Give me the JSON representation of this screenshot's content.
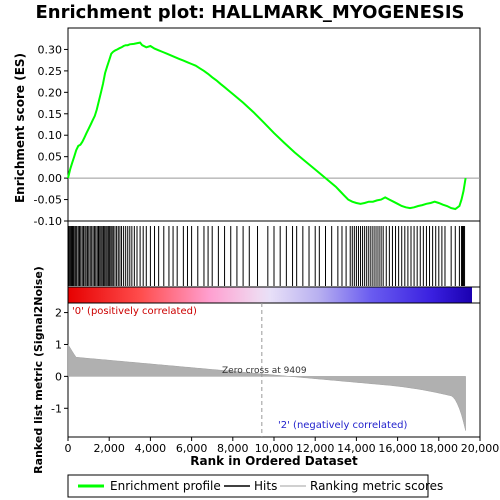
{
  "chart_data": {
    "type": "line",
    "title": "Enrichment plot: HALLMARK_MYOGENESIS",
    "xlabel": "Rank in Ordered Dataset",
    "ylabel_top": "Enrichment score (ES)",
    "ylabel_bottom": "Ranked list metric (Signal2Noise)",
    "x_ticks": [
      "0",
      "2,000",
      "4,000",
      "6,000",
      "8,000",
      "10,000",
      "12,000",
      "14,000",
      "16,000",
      "18,000",
      "20,000"
    ],
    "x_tick_values": [
      0,
      2000,
      4000,
      6000,
      8000,
      10000,
      12000,
      14000,
      16000,
      18000,
      20000
    ],
    "xlim": [
      0,
      20000
    ],
    "n_genes": 19300,
    "es_ylim": [
      -0.1,
      0.35
    ],
    "es_ticks": [
      "-0.10",
      "-0.05",
      "0.00",
      "0.05",
      "0.10",
      "0.15",
      "0.20",
      "0.25",
      "0.30"
    ],
    "es_tick_values": [
      -0.1,
      -0.05,
      0.0,
      0.05,
      0.1,
      0.15,
      0.2,
      0.25,
      0.3
    ],
    "metric_ylim": [
      -1.9,
      2.3
    ],
    "metric_ticks": [
      "2",
      "1",
      "0",
      "-1"
    ],
    "metric_tick_values": [
      2,
      1,
      0,
      -1
    ],
    "series": [
      {
        "name": "Enrichment profile",
        "color": "#00ff00",
        "x": [
          0,
          100,
          200,
          300,
          400,
          500,
          600,
          700,
          800,
          900,
          1000,
          1100,
          1200,
          1300,
          1400,
          1500,
          1600,
          1700,
          1800,
          1900,
          2000,
          2100,
          2200,
          2300,
          2400,
          2500,
          2600,
          2700,
          2800,
          2900,
          3000,
          3200,
          3400,
          3500,
          3600,
          3800,
          4000,
          4200,
          4400,
          4600,
          4800,
          5000,
          5200,
          5400,
          5600,
          5800,
          6000,
          6200,
          6400,
          6600,
          6800,
          7000,
          7200,
          7400,
          7600,
          7800,
          8000,
          8500,
          9000,
          9500,
          10000,
          10500,
          11000,
          11500,
          12000,
          12500,
          13000,
          13200,
          13400,
          13600,
          13800,
          14000,
          14200,
          14400,
          14600,
          14800,
          15000,
          15200,
          15400,
          15600,
          15800,
          16000,
          16200,
          16400,
          16600,
          16800,
          17000,
          17200,
          17400,
          17600,
          17800,
          18000,
          18200,
          18400,
          18600,
          18800,
          19000,
          19100,
          19200,
          19300
        ],
        "y": [
          0.0,
          0.02,
          0.035,
          0.05,
          0.065,
          0.075,
          0.078,
          0.085,
          0.095,
          0.105,
          0.115,
          0.125,
          0.135,
          0.145,
          0.16,
          0.18,
          0.2,
          0.22,
          0.245,
          0.26,
          0.275,
          0.29,
          0.295,
          0.298,
          0.3,
          0.303,
          0.305,
          0.308,
          0.31,
          0.31,
          0.312,
          0.313,
          0.315,
          0.316,
          0.31,
          0.305,
          0.308,
          0.302,
          0.298,
          0.294,
          0.29,
          0.286,
          0.282,
          0.278,
          0.274,
          0.27,
          0.266,
          0.262,
          0.256,
          0.25,
          0.243,
          0.235,
          0.228,
          0.22,
          0.212,
          0.204,
          0.196,
          0.176,
          0.154,
          0.13,
          0.105,
          0.082,
          0.06,
          0.04,
          0.02,
          0.0,
          -0.02,
          -0.03,
          -0.04,
          -0.05,
          -0.055,
          -0.058,
          -0.06,
          -0.058,
          -0.055,
          -0.055,
          -0.052,
          -0.05,
          -0.045,
          -0.05,
          -0.055,
          -0.06,
          -0.065,
          -0.068,
          -0.07,
          -0.068,
          -0.065,
          -0.063,
          -0.06,
          -0.058,
          -0.055,
          -0.058,
          -0.062,
          -0.065,
          -0.07,
          -0.072,
          -0.065,
          -0.05,
          -0.03,
          0.0
        ]
      }
    ],
    "hits_name": "Hits",
    "ranking_name": "Ranking metric scores",
    "hits": [
      40,
      90,
      140,
      180,
      220,
      270,
      330,
      380,
      430,
      500,
      560,
      620,
      690,
      750,
      820,
      880,
      950,
      1010,
      1080,
      1150,
      1220,
      1290,
      1350,
      1420,
      1480,
      1540,
      1600,
      1660,
      1720,
      1780,
      1840,
      1900,
      1960,
      2020,
      2080,
      2140,
      2200,
      2280,
      2360,
      2440,
      2520,
      2600,
      2700,
      2800,
      2900,
      3000,
      3100,
      3220,
      3350,
      3500,
      3650,
      3800,
      4000,
      4200,
      4400,
      4650,
      4900,
      5100,
      5300,
      5600,
      5800,
      6000,
      6300,
      6600,
      6800,
      7000,
      7300,
      7600,
      7900,
      8200,
      8500,
      8800,
      9200,
      9700,
      10000,
      10300,
      10600,
      10900,
      11100,
      11400,
      11700,
      12000,
      12200,
      12500,
      12800,
      13100,
      13300,
      13500,
      13700,
      13800,
      13900,
      14000,
      14100,
      14200,
      14300,
      14400,
      14500,
      14600,
      14700,
      14800,
      14900,
      15000,
      15100,
      15200,
      15300,
      15450,
      15600,
      15750,
      15900,
      16050,
      16200,
      16350,
      16500,
      16650,
      16800,
      16950,
      17100,
      17250,
      17400,
      17550,
      17700,
      17850,
      18000,
      18150,
      18300,
      18600,
      18800,
      19000,
      19100,
      19150,
      19200,
      19250
    ],
    "annotations": {
      "positive": "'0' (positively correlated)",
      "negative": "'2' (negatively correlated)",
      "zero_cross": "Zero cross at 9409"
    },
    "zero_cross": 9409,
    "legend": {
      "placement": "bottom",
      "items": [
        {
          "label": "Enrichment profile",
          "color": "#00ff00"
        },
        {
          "label": "Hits",
          "color": "#000000"
        },
        {
          "label": "Ranking metric scores",
          "color": "#c0c0c0"
        }
      ]
    }
  }
}
